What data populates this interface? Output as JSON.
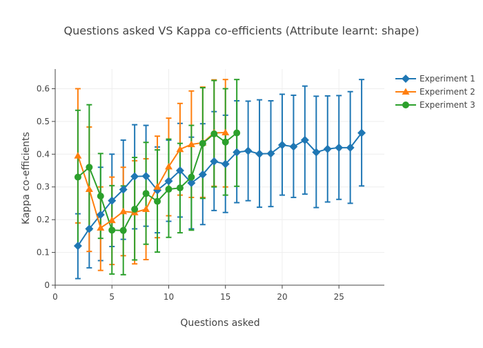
{
  "chart_data": {
    "type": "line",
    "title": "Questions asked VS Kappa co-efficients (Attribute learnt: shape)",
    "xlabel": "Questions asked",
    "ylabel": "Kappa co-efficients",
    "xlim": [
      0,
      29
    ],
    "ylim": [
      0,
      0.66
    ],
    "xticks": [
      0,
      5,
      10,
      15,
      20,
      25
    ],
    "yticks": [
      0,
      0.1,
      0.2,
      0.3,
      0.4,
      0.5,
      0.6
    ],
    "x_tick_labels": [
      "0",
      "5",
      "10",
      "15",
      "20",
      "25"
    ],
    "y_tick_labels": [
      "0",
      "0.1",
      "0.2",
      "0.3",
      "0.4",
      "0.5",
      "0.6"
    ],
    "grid": true,
    "legend_position": "top-right",
    "series": [
      {
        "name": "Experiment 1",
        "color": "#1f77b4",
        "marker": "diamond",
        "x": [
          2,
          3,
          4,
          5,
          6,
          7,
          8,
          9,
          10,
          11,
          12,
          13,
          14,
          15,
          16,
          17,
          18,
          19,
          20,
          21,
          22,
          23,
          24,
          25,
          26,
          27
        ],
        "y": [
          0.12,
          0.172,
          0.215,
          0.258,
          0.292,
          0.332,
          0.333,
          0.29,
          0.318,
          0.35,
          0.312,
          0.338,
          0.378,
          0.37,
          0.406,
          0.41,
          0.401,
          0.402,
          0.428,
          0.423,
          0.443,
          0.406,
          0.416,
          0.42,
          0.42,
          0.465
        ],
        "err_low": [
          0.02,
          0.053,
          0.075,
          0.118,
          0.14,
          0.172,
          0.18,
          0.16,
          0.195,
          0.208,
          0.172,
          0.185,
          0.228,
          0.222,
          0.252,
          0.258,
          0.238,
          0.24,
          0.275,
          0.268,
          0.278,
          0.237,
          0.254,
          0.262,
          0.25,
          0.303
        ],
        "err_high": [
          0.218,
          0.29,
          0.36,
          0.4,
          0.443,
          0.49,
          0.488,
          0.422,
          0.443,
          0.494,
          0.452,
          0.493,
          0.53,
          0.519,
          0.563,
          0.562,
          0.566,
          0.563,
          0.583,
          0.58,
          0.608,
          0.577,
          0.578,
          0.579,
          0.591,
          0.628
        ]
      },
      {
        "name": "Experiment 2",
        "color": "#ff7f0e",
        "marker": "triangle-up",
        "x": [
          2,
          3,
          4,
          5,
          6,
          7,
          8,
          9,
          10,
          11,
          12,
          13,
          14,
          15
        ],
        "y": [
          0.395,
          0.293,
          0.175,
          0.198,
          0.225,
          0.222,
          0.232,
          0.3,
          0.362,
          0.415,
          0.43,
          0.435,
          0.465,
          0.466
        ],
        "err_low": [
          0.19,
          0.103,
          0.045,
          0.063,
          0.09,
          0.065,
          0.078,
          0.145,
          0.212,
          0.275,
          0.268,
          0.268,
          0.302,
          0.3
        ],
        "err_high": [
          0.6,
          0.483,
          0.3,
          0.33,
          0.36,
          0.38,
          0.386,
          0.455,
          0.51,
          0.555,
          0.593,
          0.605,
          0.627,
          0.628
        ]
      },
      {
        "name": "Experiment 3",
        "color": "#2ca02c",
        "marker": "circle",
        "x": [
          2,
          3,
          4,
          5,
          6,
          7,
          8,
          9,
          10,
          11,
          12,
          13,
          14,
          15,
          16
        ],
        "y": [
          0.33,
          0.36,
          0.272,
          0.168,
          0.167,
          0.232,
          0.28,
          0.256,
          0.293,
          0.297,
          0.33,
          0.433,
          0.462,
          0.437,
          0.465
        ],
        "err_low": [
          0.12,
          0.168,
          0.143,
          0.034,
          0.032,
          0.077,
          0.125,
          0.101,
          0.146,
          0.16,
          0.168,
          0.265,
          0.3,
          0.275,
          0.302
        ],
        "err_high": [
          0.534,
          0.551,
          0.402,
          0.304,
          0.303,
          0.39,
          0.436,
          0.413,
          0.446,
          0.433,
          0.488,
          0.603,
          0.625,
          0.6,
          0.628
        ]
      }
    ]
  }
}
